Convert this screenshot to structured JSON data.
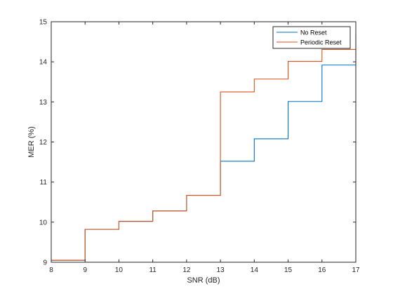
{
  "chart_data": {
    "type": "line",
    "step": true,
    "xlabel": "SNR (dB)",
    "ylabel": "MER (%)",
    "xlim": [
      8,
      17
    ],
    "ylim": [
      9,
      15
    ],
    "xticks": [
      8,
      9,
      10,
      11,
      12,
      13,
      14,
      15,
      16,
      17
    ],
    "yticks": [
      9,
      10,
      11,
      12,
      13,
      14,
      15
    ],
    "grid": false,
    "legend_position": "top-right",
    "series": [
      {
        "name": "No Reset",
        "color": "#0072bd",
        "x": [
          8,
          9,
          10,
          11,
          12,
          13,
          14,
          15,
          16,
          17
        ],
        "y": [
          9.05,
          9.82,
          10.02,
          10.28,
          10.67,
          11.52,
          12.08,
          13.01,
          13.92,
          14.32
        ]
      },
      {
        "name": "Periodic Reset",
        "color": "#d95319",
        "x": [
          8,
          9,
          10,
          11,
          12,
          13,
          14,
          15,
          16,
          17
        ],
        "y": [
          9.05,
          9.82,
          10.02,
          10.28,
          10.67,
          13.25,
          13.57,
          14.01,
          14.31,
          14.68
        ]
      }
    ]
  }
}
